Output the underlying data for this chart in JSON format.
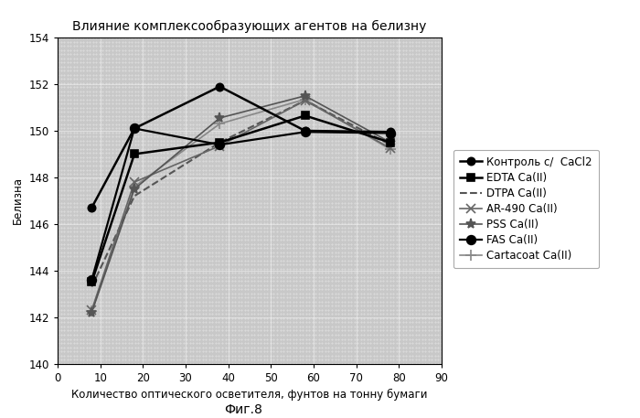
{
  "title": "Влияние комплексообразующих агентов на белизну",
  "xlabel": "Количество оптического осветителя, фунтов на тонну бумаги",
  "ylabel": "Белизна",
  "caption": "Фиг.8",
  "xlim": [
    0,
    90
  ],
  "ylim": [
    140.0,
    154.0
  ],
  "xticks": [
    0,
    10,
    20,
    30,
    40,
    50,
    60,
    70,
    80,
    90
  ],
  "yticks": [
    140.0,
    142.0,
    144.0,
    146.0,
    148.0,
    150.0,
    152.0,
    154.0
  ],
  "series": [
    {
      "label": "Контроль с/  CaCl2",
      "x": [
        8,
        18,
        38,
        58,
        78
      ],
      "y": [
        146.7,
        150.1,
        151.9,
        150.0,
        149.95
      ],
      "color": "#000000",
      "linestyle": "-",
      "linewidth": 1.8,
      "marker": "o",
      "markersize": 6,
      "markerfacecolor": "#000000",
      "zorder": 5
    },
    {
      "label": "EDTA Ca(II)",
      "x": [
        8,
        18,
        38,
        58,
        78
      ],
      "y": [
        143.5,
        149.0,
        149.5,
        150.65,
        149.5
      ],
      "color": "#000000",
      "linestyle": "-",
      "linewidth": 1.8,
      "marker": "s",
      "markersize": 6,
      "markerfacecolor": "#000000",
      "zorder": 4
    },
    {
      "label": "DTPA Ca(II)",
      "x": [
        8,
        18,
        38,
        58,
        78
      ],
      "y": [
        143.3,
        147.2,
        149.5,
        151.3,
        149.4
      ],
      "color": "#555555",
      "linestyle": "--",
      "linewidth": 1.5,
      "marker": null,
      "markersize": 0,
      "markerfacecolor": "#555555",
      "zorder": 3
    },
    {
      "label": "AR-490 Ca(II)",
      "x": [
        8,
        18,
        38,
        58,
        78
      ],
      "y": [
        142.3,
        147.8,
        149.35,
        151.3,
        149.25
      ],
      "color": "#666666",
      "linestyle": "-",
      "linewidth": 1.2,
      "marker": "x",
      "markersize": 7,
      "markerfacecolor": "#666666",
      "zorder": 3
    },
    {
      "label": "PSS Ca(II)",
      "x": [
        8,
        18,
        38,
        58,
        78
      ],
      "y": [
        142.2,
        147.5,
        150.55,
        151.5,
        149.5
      ],
      "color": "#555555",
      "linestyle": "-",
      "linewidth": 1.2,
      "marker": "*",
      "markersize": 8,
      "markerfacecolor": "#555555",
      "zorder": 3
    },
    {
      "label": "FAS Ca(II)",
      "x": [
        8,
        18,
        38,
        58,
        78
      ],
      "y": [
        143.6,
        150.1,
        149.4,
        149.95,
        149.9
      ],
      "color": "#000000",
      "linestyle": "-",
      "linewidth": 1.6,
      "marker": "o",
      "markersize": 7,
      "markerfacecolor": "#000000",
      "zorder": 4
    },
    {
      "label": "Cartacoat Ca(II)",
      "x": [
        8,
        18,
        38,
        58,
        78
      ],
      "y": [
        142.25,
        147.6,
        150.3,
        151.35,
        149.2
      ],
      "color": "#888888",
      "linestyle": "-",
      "linewidth": 1.2,
      "marker": "+",
      "markersize": 8,
      "markerfacecolor": "#888888",
      "zorder": 2
    }
  ],
  "bg_color": "#c8c8c8",
  "fig_bg_color": "#ffffff",
  "legend_fontsize": 8.5,
  "axis_fontsize": 8.5,
  "title_fontsize": 10,
  "caption_fontsize": 10
}
